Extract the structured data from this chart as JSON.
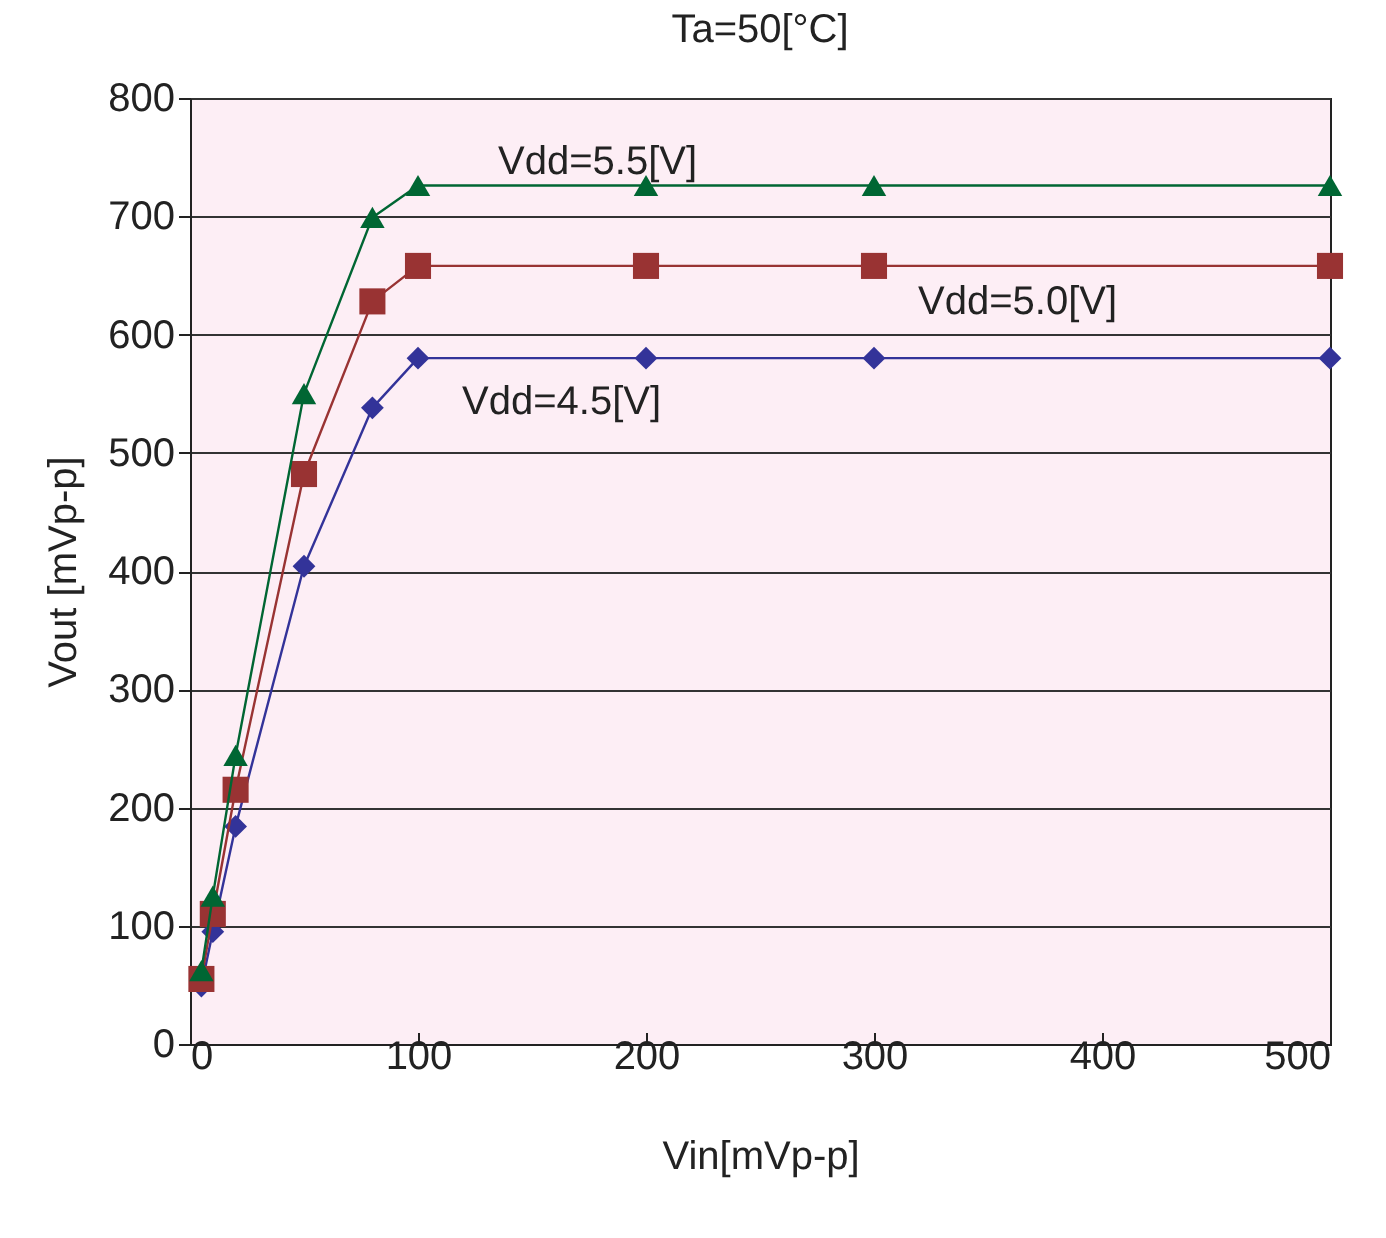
{
  "chart_data": {
    "type": "line",
    "title": "Ta=50[°C]",
    "xlabel": "Vin[mVp-p]",
    "ylabel": "Vout [mVp-p]",
    "xlim": [
      0,
      500
    ],
    "xticks": [
      0,
      100,
      200,
      300,
      400,
      500
    ],
    "ylim": [
      0,
      800
    ],
    "yticks": [
      0,
      100,
      200,
      300,
      400,
      500,
      600,
      700,
      800
    ],
    "grid": "y",
    "series": [
      {
        "name": "Vdd=5.5[V]",
        "color": "#006633",
        "marker": "triangle",
        "x": [
          5,
          10,
          20,
          50,
          80,
          100,
          200,
          300,
          500
        ],
        "values": [
          62,
          125,
          244,
          550,
          699,
          726,
          726,
          726,
          726
        ]
      },
      {
        "name": "Vdd=5.0[V]",
        "color": "#993333",
        "marker": "square",
        "x": [
          5,
          10,
          20,
          50,
          80,
          100,
          200,
          300,
          500
        ],
        "values": [
          55,
          110,
          215,
          482,
          628,
          658,
          658,
          658,
          658
        ]
      },
      {
        "name": "Vdd=4.5[V]",
        "color": "#333399",
        "marker": "diamond",
        "x": [
          5,
          10,
          20,
          50,
          80,
          100,
          200,
          300,
          500
        ],
        "values": [
          49,
          95,
          184,
          404,
          538,
          580,
          580,
          580,
          580
        ]
      }
    ]
  }
}
